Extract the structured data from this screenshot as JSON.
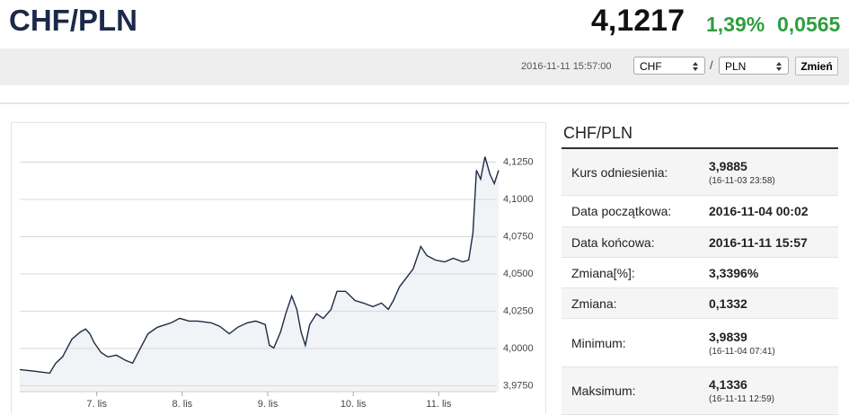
{
  "header": {
    "title": "CHF/PLN",
    "price": "4,1217",
    "change_pct": "1,39%",
    "change": "0,0565",
    "timestamp": "2016-11-11 15:57:00",
    "from": "CHF",
    "separator": "/",
    "to": "PLN",
    "button": "Zmień"
  },
  "chart_data": {
    "type": "line",
    "color": "#1c2b45",
    "area_color": "#f1f3f6",
    "grid": true,
    "x": [
      6.1,
      6.29,
      6.45,
      6.52,
      6.6,
      6.71,
      6.81,
      6.87,
      6.92,
      6.97,
      7.05,
      7.13,
      7.23,
      7.34,
      7.42,
      7.5,
      7.6,
      7.71,
      7.87,
      7.97,
      8.08,
      8.18,
      8.34,
      8.44,
      8.55,
      8.65,
      8.76,
      8.86,
      8.97,
      9.02,
      9.07,
      9.15,
      9.21,
      9.28,
      9.34,
      9.39,
      9.44,
      9.49,
      9.57,
      9.65,
      9.74,
      9.81,
      9.91,
      10.02,
      10.12,
      10.23,
      10.33,
      10.41,
      10.47,
      10.54,
      10.62,
      10.7,
      10.79,
      10.86,
      10.96,
      11.07,
      11.17,
      11.28,
      11.35,
      11.4,
      11.44,
      11.49,
      11.54,
      11.6,
      11.65,
      11.7
    ],
    "values": [
      3.9858,
      3.9846,
      3.9834,
      3.9901,
      3.9943,
      4.0063,
      4.0111,
      4.013,
      4.0099,
      4.0039,
      3.9973,
      3.9943,
      3.9955,
      3.9919,
      3.9901,
      3.9991,
      4.0099,
      4.0142,
      4.0172,
      4.0202,
      4.0184,
      4.0184,
      4.0172,
      4.0148,
      4.0099,
      4.0142,
      4.0172,
      4.0184,
      4.016,
      4.0021,
      4.0003,
      4.0111,
      4.0232,
      4.0352,
      4.0262,
      4.0111,
      4.0021,
      4.016,
      4.0232,
      4.0202,
      4.0262,
      4.0383,
      4.0383,
      4.0322,
      4.0304,
      4.028,
      4.0304,
      4.0262,
      4.0322,
      4.0413,
      4.0473,
      4.0533,
      4.0684,
      4.0623,
      4.0593,
      4.0581,
      4.0605,
      4.0581,
      4.0593,
      4.0774,
      4.1196,
      4.1136,
      4.1286,
      4.1166,
      4.1106,
      4.1196
    ],
    "xlim": [
      6.1,
      11.7
    ],
    "ylim": [
      3.971,
      4.147
    ],
    "xticks": [
      {
        "value": 7,
        "label": "7. lis"
      },
      {
        "value": 8,
        "label": "8. lis"
      },
      {
        "value": 9,
        "label": "9. lis"
      },
      {
        "value": 10,
        "label": "10. lis"
      },
      {
        "value": 11,
        "label": "11. lis"
      }
    ],
    "yticks": [
      {
        "value": 3.975,
        "label": "3,9750"
      },
      {
        "value": 4.0,
        "label": "4,0000"
      },
      {
        "value": 4.025,
        "label": "4,0250"
      },
      {
        "value": 4.05,
        "label": "4,0500"
      },
      {
        "value": 4.075,
        "label": "4,0750"
      },
      {
        "value": 4.1,
        "label": "4,1000"
      },
      {
        "value": 4.125,
        "label": "4,1250"
      }
    ]
  },
  "table": {
    "title": "CHF/PLN",
    "rows": [
      {
        "label": "Kurs odniesienia:",
        "value": "3,9885",
        "sub": "(16-11-03 23:58)"
      },
      {
        "label": "Data początkowa:",
        "value": "2016-11-04 00:02"
      },
      {
        "label": "Data końcowa:",
        "value": "2016-11-11 15:57"
      },
      {
        "label": "Zmiana[%]:",
        "value": "3,3396%"
      },
      {
        "label": "Zmiana:",
        "value": "0,1332"
      },
      {
        "label": "Minimum:",
        "value": "3,9839",
        "sub": "(16-11-04 07:41)"
      },
      {
        "label": "Maksimum:",
        "value": "4,1336",
        "sub": "(16-11-11 12:59)"
      }
    ]
  }
}
